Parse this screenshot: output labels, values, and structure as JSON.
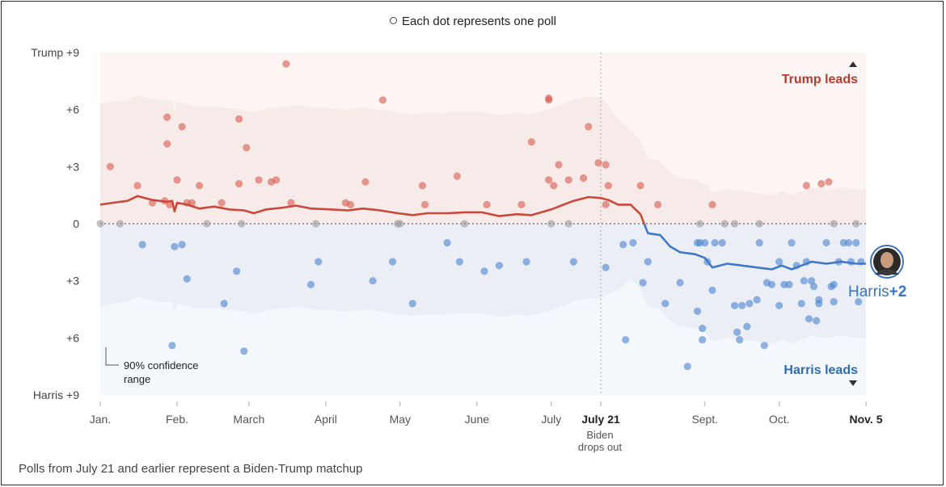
{
  "header_note": "Each dot represents one poll",
  "footer_note": "Polls from July 21 and earlier represent a Biden-Trump matchup",
  "annotations": {
    "trump_leads": "Trump leads",
    "harris_leads": "Harris leads",
    "ci_line1": "90% confidence",
    "ci_line2": "range",
    "biden_line1": "Biden",
    "biden_line2": "drops out",
    "end_label_name": "Harris",
    "end_label_value": "+2"
  },
  "colors": {
    "trump": "#d9584c",
    "harris": "#4a83d1",
    "tie": "#999999",
    "trump_band": "#f7ebe9",
    "trump_bg": "#fcf5f3",
    "harris_band": "#ebeef4",
    "harris_bg": "#f4f7fb"
  },
  "chart_data": {
    "type": "scatter",
    "title": "",
    "xlabel": "",
    "ylabel": "",
    "ylim": [
      -9,
      9
    ],
    "y_ticks": [
      {
        "v": 9,
        "label": "Trump +9"
      },
      {
        "v": 6,
        "label": "+6"
      },
      {
        "v": 3,
        "label": "+3"
      },
      {
        "v": 0,
        "label": "0"
      },
      {
        "v": -3,
        "label": "+3"
      },
      {
        "v": -6,
        "label": "+6"
      },
      {
        "v": -9,
        "label": "Harris +9"
      }
    ],
    "x_ticks": [
      {
        "date": "2024-01-01",
        "label": "Jan."
      },
      {
        "date": "2024-02-01",
        "label": "Feb."
      },
      {
        "date": "2024-03-01",
        "label": "March"
      },
      {
        "date": "2024-04-01",
        "label": "April"
      },
      {
        "date": "2024-05-01",
        "label": "May"
      },
      {
        "date": "2024-06-01",
        "label": "June"
      },
      {
        "date": "2024-07-01",
        "label": "July"
      },
      {
        "date": "2024-07-21",
        "label": "July 21",
        "bold": true
      },
      {
        "date": "2024-09-01",
        "label": "Sept."
      },
      {
        "date": "2024-10-01",
        "label": "Oct."
      },
      {
        "date": "2024-11-05",
        "label": "Nov. 5",
        "bold": true
      }
    ],
    "event_date": "2024-07-21",
    "xlim": [
      "2024-01-01",
      "2024-11-05"
    ],
    "series": [
      {
        "name": "polls",
        "points": [
          [
            "2024-01-05",
            3.0
          ],
          [
            "2024-01-16",
            2.0
          ],
          [
            "2024-01-22",
            1.1
          ],
          [
            "2024-01-27",
            1.2
          ],
          [
            "2024-01-28",
            4.2
          ],
          [
            "2024-01-28",
            5.6
          ],
          [
            "2024-01-29",
            1.0
          ],
          [
            "2024-02-01",
            2.3
          ],
          [
            "2024-02-03",
            5.1
          ],
          [
            "2024-02-05",
            1.1
          ],
          [
            "2024-02-07",
            1.1
          ],
          [
            "2024-02-10",
            2.0
          ],
          [
            "2024-02-19",
            1.1
          ],
          [
            "2024-02-26",
            2.1
          ],
          [
            "2024-02-26",
            5.5
          ],
          [
            "2024-02-29",
            4.0
          ],
          [
            "2024-03-05",
            2.3
          ],
          [
            "2024-03-10",
            2.2
          ],
          [
            "2024-03-12",
            2.3
          ],
          [
            "2024-03-16",
            8.4
          ],
          [
            "2024-03-18",
            1.1
          ],
          [
            "2024-04-09",
            1.1
          ],
          [
            "2024-04-11",
            1.0
          ],
          [
            "2024-04-17",
            2.2
          ],
          [
            "2024-04-24",
            6.5
          ],
          [
            "2024-05-10",
            2.0
          ],
          [
            "2024-05-11",
            1.0
          ],
          [
            "2024-05-24",
            2.5
          ],
          [
            "2024-06-05",
            1.0
          ],
          [
            "2024-06-19",
            1.0
          ],
          [
            "2024-06-23",
            4.3
          ],
          [
            "2024-06-30",
            6.6
          ],
          [
            "2024-06-30",
            6.5
          ],
          [
            "2024-06-30",
            2.3
          ],
          [
            "2024-07-02",
            2.0
          ],
          [
            "2024-07-04",
            3.1
          ],
          [
            "2024-07-08",
            2.3
          ],
          [
            "2024-07-14",
            2.4
          ],
          [
            "2024-07-16",
            5.1
          ],
          [
            "2024-07-20",
            3.2
          ],
          [
            "2024-07-23",
            3.1
          ],
          [
            "2024-07-23",
            1.0
          ],
          [
            "2024-07-24",
            2.0
          ],
          [
            "2024-08-06",
            2.0
          ],
          [
            "2024-08-13",
            1.0
          ],
          [
            "2024-09-04",
            1.0
          ],
          [
            "2024-10-12",
            2.0
          ],
          [
            "2024-10-18",
            2.1
          ],
          [
            "2024-10-21",
            2.2
          ],
          [
            "2024-01-01",
            0
          ],
          [
            "2024-01-09",
            0
          ],
          [
            "2024-02-13",
            0
          ],
          [
            "2024-02-27",
            0
          ],
          [
            "2024-03-28",
            0
          ],
          [
            "2024-04-30",
            0
          ],
          [
            "2024-05-01",
            0
          ],
          [
            "2024-05-27",
            0
          ],
          [
            "2024-07-01",
            0
          ],
          [
            "2024-07-08",
            0
          ],
          [
            "2024-08-30",
            0
          ],
          [
            "2024-09-09",
            0
          ],
          [
            "2024-09-13",
            0
          ],
          [
            "2024-09-23",
            0
          ],
          [
            "2024-10-23",
            0
          ],
          [
            "2024-11-01",
            0
          ],
          [
            "2024-01-18",
            -1.1
          ],
          [
            "2024-01-31",
            -1.2
          ],
          [
            "2024-02-03",
            -1.1
          ],
          [
            "2024-02-05",
            -2.9
          ],
          [
            "2024-01-30",
            -6.4
          ],
          [
            "2024-02-25",
            -2.5
          ],
          [
            "2024-02-28",
            -6.7
          ],
          [
            "2024-02-20",
            -4.2
          ],
          [
            "2024-03-26",
            -3.2
          ],
          [
            "2024-03-29",
            -2.0
          ],
          [
            "2024-04-20",
            -3.0
          ],
          [
            "2024-04-28",
            -2.0
          ],
          [
            "2024-05-06",
            -4.2
          ],
          [
            "2024-05-20",
            -1.0
          ],
          [
            "2024-05-25",
            -2.0
          ],
          [
            "2024-06-04",
            -2.5
          ],
          [
            "2024-06-10",
            -2.2
          ],
          [
            "2024-06-21",
            -2.0
          ],
          [
            "2024-07-10",
            -2.0
          ],
          [
            "2024-07-23",
            -2.3
          ],
          [
            "2024-07-30",
            -1.1
          ],
          [
            "2024-08-03",
            -1.0
          ],
          [
            "2024-08-09",
            -2.0
          ],
          [
            "2024-07-31",
            -6.1
          ],
          [
            "2024-08-07",
            -3.1
          ],
          [
            "2024-08-16",
            -4.2
          ],
          [
            "2024-08-22",
            -3.1
          ],
          [
            "2024-08-25",
            -7.5
          ],
          [
            "2024-08-29",
            -4.6
          ],
          [
            "2024-08-29",
            -1.0
          ],
          [
            "2024-08-30",
            -1.0
          ],
          [
            "2024-08-31",
            -6.1
          ],
          [
            "2024-08-31",
            -5.5
          ],
          [
            "2024-09-01",
            -1.0
          ],
          [
            "2024-09-02",
            -2.0
          ],
          [
            "2024-09-05",
            -1.0
          ],
          [
            "2024-09-04",
            -3.5
          ],
          [
            "2024-09-08",
            -1.0
          ],
          [
            "2024-09-13",
            -4.3
          ],
          [
            "2024-09-14",
            -5.7
          ],
          [
            "2024-09-15",
            -6.1
          ],
          [
            "2024-09-16",
            -4.3
          ],
          [
            "2024-09-18",
            -5.4
          ],
          [
            "2024-09-19",
            -4.2
          ],
          [
            "2024-09-22",
            -4.0
          ],
          [
            "2024-09-23",
            -1.0
          ],
          [
            "2024-09-25",
            -6.4
          ],
          [
            "2024-09-26",
            -3.1
          ],
          [
            "2024-09-28",
            -3.2
          ],
          [
            "2024-10-01",
            -4.3
          ],
          [
            "2024-10-01",
            -2.0
          ],
          [
            "2024-10-03",
            -3.2
          ],
          [
            "2024-10-05",
            -3.2
          ],
          [
            "2024-10-06",
            -1.0
          ],
          [
            "2024-10-08",
            -2.2
          ],
          [
            "2024-10-10",
            -4.2
          ],
          [
            "2024-10-11",
            -3.0
          ],
          [
            "2024-10-12",
            -2.0
          ],
          [
            "2024-10-13",
            -5.0
          ],
          [
            "2024-10-14",
            -3.0
          ],
          [
            "2024-10-15",
            -3.3
          ],
          [
            "2024-10-16",
            -5.1
          ],
          [
            "2024-10-17",
            -4.2
          ],
          [
            "2024-10-17",
            -4.0
          ],
          [
            "2024-10-20",
            -1.0
          ],
          [
            "2024-10-22",
            -3.3
          ],
          [
            "2024-10-23",
            -3.2
          ],
          [
            "2024-10-23",
            -4.1
          ],
          [
            "2024-10-25",
            -2.0
          ],
          [
            "2024-10-27",
            -1.0
          ],
          [
            "2024-10-29",
            -1.0
          ],
          [
            "2024-10-30",
            -2.0
          ],
          [
            "2024-11-01",
            -1.0
          ],
          [
            "2024-11-02",
            -4.1
          ],
          [
            "2024-11-03",
            -2.0
          ]
        ]
      },
      {
        "name": "average",
        "points": [
          [
            "2024-01-01",
            1.0
          ],
          [
            "2024-01-06",
            1.1
          ],
          [
            "2024-01-12",
            1.2
          ],
          [
            "2024-01-16",
            1.45
          ],
          [
            "2024-01-22",
            1.25
          ],
          [
            "2024-01-28",
            1.15
          ],
          [
            "2024-01-30",
            1.2
          ],
          [
            "2024-01-31",
            0.65
          ],
          [
            "2024-02-01",
            1.1
          ],
          [
            "2024-02-05",
            1.0
          ],
          [
            "2024-02-10",
            0.8
          ],
          [
            "2024-02-16",
            0.9
          ],
          [
            "2024-02-22",
            0.75
          ],
          [
            "2024-02-28",
            0.7
          ],
          [
            "2024-03-03",
            0.55
          ],
          [
            "2024-03-08",
            0.75
          ],
          [
            "2024-03-15",
            0.85
          ],
          [
            "2024-03-20",
            0.95
          ],
          [
            "2024-03-26",
            0.8
          ],
          [
            "2024-04-03",
            0.75
          ],
          [
            "2024-04-10",
            0.7
          ],
          [
            "2024-04-16",
            0.8
          ],
          [
            "2024-04-23",
            0.7
          ],
          [
            "2024-04-30",
            0.55
          ],
          [
            "2024-05-06",
            0.45
          ],
          [
            "2024-05-12",
            0.55
          ],
          [
            "2024-05-20",
            0.55
          ],
          [
            "2024-05-27",
            0.6
          ],
          [
            "2024-06-03",
            0.6
          ],
          [
            "2024-06-10",
            0.4
          ],
          [
            "2024-06-17",
            0.5
          ],
          [
            "2024-06-23",
            0.45
          ],
          [
            "2024-06-27",
            0.6
          ],
          [
            "2024-07-01",
            0.75
          ],
          [
            "2024-07-06",
            1.0
          ],
          [
            "2024-07-10",
            1.2
          ],
          [
            "2024-07-16",
            1.4
          ],
          [
            "2024-07-21",
            1.35
          ],
          [
            "2024-07-24",
            1.25
          ],
          [
            "2024-07-28",
            1.0
          ],
          [
            "2024-08-02",
            1.0
          ],
          [
            "2024-08-06",
            0.5
          ],
          [
            "2024-08-09",
            -0.5
          ],
          [
            "2024-08-14",
            -0.6
          ],
          [
            "2024-08-18",
            -1.2
          ],
          [
            "2024-08-22",
            -1.5
          ],
          [
            "2024-08-28",
            -1.6
          ],
          [
            "2024-09-01",
            -1.8
          ],
          [
            "2024-09-04",
            -2.3
          ],
          [
            "2024-09-10",
            -2.1
          ],
          [
            "2024-09-16",
            -2.2
          ],
          [
            "2024-09-22",
            -2.3
          ],
          [
            "2024-09-28",
            -2.4
          ],
          [
            "2024-10-02",
            -2.2
          ],
          [
            "2024-10-06",
            -2.4
          ],
          [
            "2024-10-10",
            -2.2
          ],
          [
            "2024-10-14",
            -2.0
          ],
          [
            "2024-10-20",
            -2.1
          ],
          [
            "2024-10-26",
            -2.0
          ],
          [
            "2024-11-01",
            -2.1
          ],
          [
            "2024-11-05",
            -2.1
          ]
        ]
      }
    ]
  }
}
